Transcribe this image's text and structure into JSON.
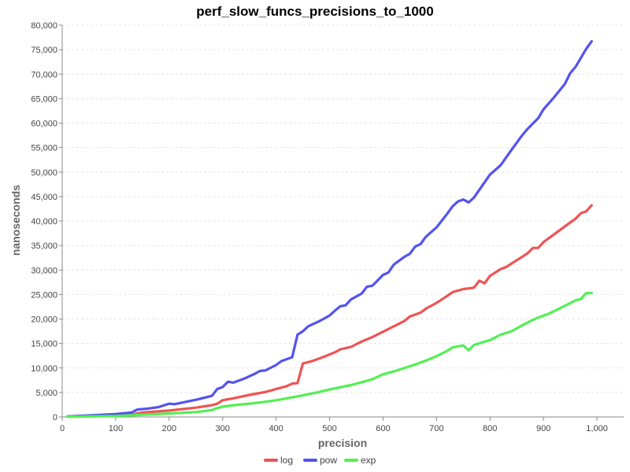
{
  "chart_data": {
    "type": "line",
    "title": "perf_slow_funcs_precisions_to_1000",
    "xlabel": "precision",
    "ylabel": "nanoseconds",
    "xlim": [
      0,
      1050
    ],
    "ylim": [
      0,
      80000
    ],
    "x_ticks": [
      0,
      100,
      200,
      300,
      400,
      500,
      600,
      700,
      800,
      900,
      1000
    ],
    "x_tick_labels": [
      "0",
      "100",
      "200",
      "300",
      "400",
      "500",
      "600",
      "700",
      "800",
      "900",
      "1,000"
    ],
    "y_ticks": [
      0,
      5000,
      10000,
      15000,
      20000,
      25000,
      30000,
      35000,
      40000,
      45000,
      50000,
      55000,
      60000,
      65000,
      70000,
      75000,
      80000
    ],
    "y_tick_labels": [
      "0",
      "5,000",
      "10,000",
      "15,000",
      "20,000",
      "25,000",
      "30,000",
      "35,000",
      "40,000",
      "45,000",
      "50,000",
      "55,000",
      "60,000",
      "65,000",
      "70,000",
      "75,000",
      "80,000"
    ],
    "grid": true,
    "legend_position": "bottom",
    "series": [
      {
        "name": "log",
        "color": "#ef5353",
        "points": [
          [
            10,
            100
          ],
          [
            50,
            200
          ],
          [
            100,
            300
          ],
          [
            130,
            400
          ],
          [
            140,
            700
          ],
          [
            150,
            900
          ],
          [
            200,
            1300
          ],
          [
            250,
            1900
          ],
          [
            280,
            2400
          ],
          [
            290,
            2700
          ],
          [
            300,
            3400
          ],
          [
            320,
            3800
          ],
          [
            350,
            4500
          ],
          [
            380,
            5100
          ],
          [
            400,
            5700
          ],
          [
            420,
            6300
          ],
          [
            430,
            6800
          ],
          [
            440,
            6900
          ],
          [
            450,
            10900
          ],
          [
            470,
            11500
          ],
          [
            490,
            12300
          ],
          [
            510,
            13200
          ],
          [
            520,
            13800
          ],
          [
            540,
            14300
          ],
          [
            560,
            15400
          ],
          [
            580,
            16300
          ],
          [
            600,
            17400
          ],
          [
            620,
            18500
          ],
          [
            640,
            19600
          ],
          [
            650,
            20500
          ],
          [
            670,
            21300
          ],
          [
            680,
            22100
          ],
          [
            700,
            23300
          ],
          [
            720,
            24700
          ],
          [
            730,
            25500
          ],
          [
            750,
            26100
          ],
          [
            770,
            26400
          ],
          [
            780,
            27800
          ],
          [
            790,
            27300
          ],
          [
            800,
            28800
          ],
          [
            820,
            30200
          ],
          [
            830,
            30600
          ],
          [
            850,
            32000
          ],
          [
            870,
            33400
          ],
          [
            880,
            34500
          ],
          [
            890,
            34500
          ],
          [
            900,
            35700
          ],
          [
            920,
            37300
          ],
          [
            940,
            38900
          ],
          [
            960,
            40500
          ],
          [
            970,
            41600
          ],
          [
            980,
            42000
          ],
          [
            990,
            43200
          ]
        ]
      },
      {
        "name": "pow",
        "color": "#5353ef",
        "points": [
          [
            10,
            100
          ],
          [
            50,
            300
          ],
          [
            100,
            600
          ],
          [
            130,
            900
          ],
          [
            140,
            1500
          ],
          [
            160,
            1700
          ],
          [
            180,
            2000
          ],
          [
            200,
            2700
          ],
          [
            210,
            2600
          ],
          [
            250,
            3500
          ],
          [
            280,
            4300
          ],
          [
            290,
            5700
          ],
          [
            300,
            6100
          ],
          [
            310,
            7200
          ],
          [
            320,
            7000
          ],
          [
            340,
            7800
          ],
          [
            360,
            8800
          ],
          [
            370,
            9400
          ],
          [
            380,
            9500
          ],
          [
            400,
            10600
          ],
          [
            410,
            11400
          ],
          [
            430,
            12200
          ],
          [
            440,
            16800
          ],
          [
            450,
            17500
          ],
          [
            460,
            18500
          ],
          [
            480,
            19500
          ],
          [
            500,
            20700
          ],
          [
            510,
            21700
          ],
          [
            520,
            22600
          ],
          [
            530,
            22800
          ],
          [
            540,
            24000
          ],
          [
            560,
            25200
          ],
          [
            570,
            26600
          ],
          [
            580,
            26800
          ],
          [
            600,
            29000
          ],
          [
            610,
            29500
          ],
          [
            620,
            31100
          ],
          [
            640,
            32700
          ],
          [
            650,
            33300
          ],
          [
            660,
            34800
          ],
          [
            670,
            35300
          ],
          [
            680,
            36800
          ],
          [
            700,
            38700
          ],
          [
            720,
            41500
          ],
          [
            730,
            43000
          ],
          [
            740,
            44000
          ],
          [
            750,
            44400
          ],
          [
            760,
            43800
          ],
          [
            770,
            44800
          ],
          [
            800,
            49500
          ],
          [
            820,
            51400
          ],
          [
            840,
            54500
          ],
          [
            860,
            57500
          ],
          [
            870,
            58800
          ],
          [
            890,
            61000
          ],
          [
            900,
            62800
          ],
          [
            920,
            65300
          ],
          [
            940,
            68000
          ],
          [
            950,
            70200
          ],
          [
            960,
            71500
          ],
          [
            980,
            75200
          ],
          [
            990,
            76700
          ]
        ]
      },
      {
        "name": "exp",
        "color": "#53ef53",
        "points": [
          [
            10,
            50
          ],
          [
            50,
            100
          ],
          [
            100,
            200
          ],
          [
            140,
            400
          ],
          [
            200,
            700
          ],
          [
            250,
            1000
          ],
          [
            280,
            1400
          ],
          [
            290,
            1800
          ],
          [
            300,
            2100
          ],
          [
            330,
            2500
          ],
          [
            350,
            2700
          ],
          [
            380,
            3100
          ],
          [
            400,
            3400
          ],
          [
            430,
            4000
          ],
          [
            450,
            4400
          ],
          [
            480,
            5100
          ],
          [
            500,
            5600
          ],
          [
            540,
            6500
          ],
          [
            560,
            7100
          ],
          [
            580,
            7700
          ],
          [
            600,
            8700
          ],
          [
            620,
            9300
          ],
          [
            640,
            10000
          ],
          [
            660,
            10700
          ],
          [
            680,
            11500
          ],
          [
            700,
            12400
          ],
          [
            720,
            13500
          ],
          [
            730,
            14200
          ],
          [
            750,
            14600
          ],
          [
            760,
            13600
          ],
          [
            770,
            14700
          ],
          [
            800,
            15700
          ],
          [
            820,
            16800
          ],
          [
            840,
            17500
          ],
          [
            860,
            18700
          ],
          [
            880,
            19800
          ],
          [
            890,
            20300
          ],
          [
            910,
            21100
          ],
          [
            920,
            21600
          ],
          [
            940,
            22700
          ],
          [
            960,
            23800
          ],
          [
            970,
            24100
          ],
          [
            980,
            25300
          ],
          [
            990,
            25300
          ]
        ]
      }
    ]
  }
}
